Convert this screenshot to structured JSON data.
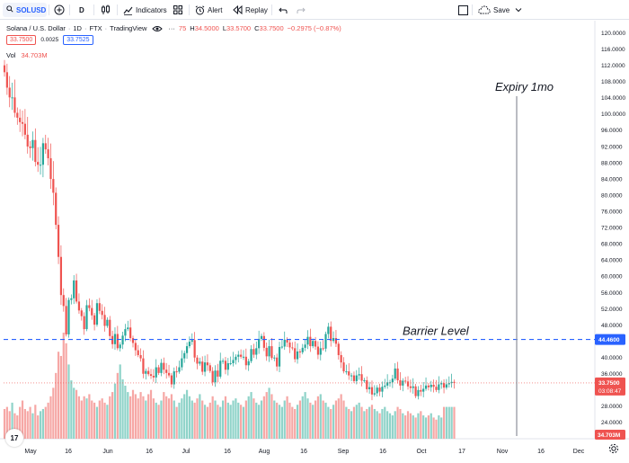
{
  "toolbar": {
    "symbol": "SOLUSD",
    "add_symbol": "+",
    "interval": "D",
    "indicators": "Indicators",
    "alert": "Alert",
    "replay": "Replay",
    "save": "Save"
  },
  "legend": {
    "title": "Solana / U.S. Dollar",
    "interval": "1D",
    "exchange": "FTX",
    "source": "TradingView",
    "o_partial": "75",
    "h_label": "H",
    "h_value": "34.5000",
    "l_label": "L",
    "l_value": "33.5700",
    "c_label": "C",
    "c_value": "33.7500",
    "change": "−0.2975 (−0.87%)",
    "bid": "33.7500",
    "spread": "0.0025",
    "ask": "33.7525",
    "vol_label": "Vol",
    "vol_value": "34.703M"
  },
  "annotations": {
    "expiry": "Expiry 1mo",
    "barrier": "Barrier Level"
  },
  "price_axis": {
    "ticks": [
      "120.0000",
      "116.0000",
      "112.0000",
      "108.0000",
      "104.0000",
      "100.0000",
      "96.0000",
      "92.0000",
      "88.0000",
      "84.0000",
      "80.0000",
      "76.0000",
      "72.0000",
      "68.0000",
      "64.0000",
      "60.0000",
      "56.0000",
      "52.0000",
      "48.0000",
      "40.0000",
      "36.0000",
      "28.0000",
      "24.0000"
    ],
    "barrier_badge": "44.4600",
    "last_price_badge": "33.7500",
    "countdown": "03:08:47",
    "volume_badge": "34.703M"
  },
  "time_axis": {
    "labels": [
      "May",
      "16",
      "Jun",
      "16",
      "Jul",
      "16",
      "Aug",
      "16",
      "Sep",
      "16",
      "Oct",
      "17",
      "Nov",
      "16",
      "Dec"
    ]
  },
  "colors": {
    "up": "#26a69a",
    "down": "#ef5350",
    "up_volume": "#8fd3c9",
    "down_volume": "#f6a7a5",
    "barrier": "#2962ff",
    "accent": "#2962ff"
  },
  "chart_data": {
    "type": "candlestick",
    "y_axis_range": [
      20,
      123
    ],
    "series": [
      {
        "name": "SOLUSD",
        "period": "May–Oct",
        "o": [
          112.0,
          110.3,
          106.5,
          104.1,
          104.1,
          100.3,
          99.1,
          98.0,
          97.6,
          94.9,
          92.0,
          91.6,
          93.6,
          88.2,
          87.5,
          87.5,
          92.8,
          91.3,
          89.1,
          84.0,
          80.6,
          72.7,
          64.8,
          55.4,
          52.7,
          45.7,
          54.2,
          54.6,
          59.0,
          53.8,
          51.6,
          50.2,
          47.0,
          52.9,
          52.2,
          50.4,
          48.1,
          53.4,
          51.5,
          50.5,
          47.8,
          49.3,
          45.3,
          43.3,
          45.8,
          42.3,
          43.2,
          45.4,
          47.0,
          47.4,
          44.8,
          43.6,
          41.8,
          40.6,
          39.8,
          36.0,
          36.7,
          35.9,
          35.5,
          35.1,
          37.6,
          36.2,
          38.7,
          37.0,
          36.2,
          35.6,
          33.4,
          36.6,
          36.5,
          37.6,
          39.8,
          41.1,
          42.8,
          43.9,
          44.3,
          40.0,
          38.5,
          39.0,
          36.5,
          38.8,
          38.1,
          36.7,
          33.9,
          36.8,
          35.3,
          39.2,
          39.2,
          37.0,
          38.6,
          38.6,
          39.4,
          40.2,
          40.7,
          40.2,
          40.2,
          38.1,
          39.1,
          42.1,
          40.7,
          42.3,
          44.6,
          45.3,
          42.4,
          40.3,
          42.8,
          39.9,
          40.0,
          37.8,
          42.6,
          42.7,
          44.4,
          43.7,
          42.5,
          42.3,
          39.6,
          41.5,
          41.3,
          42.4,
          43.2,
          45.1,
          42.8,
          44.1,
          42.7,
          40.7,
          42.3,
          42.2,
          45.8,
          47.6,
          44.1,
          44.8,
          43.4,
          40.6,
          38.8,
          36.6,
          36.6,
          35.6,
          35.6,
          34.2,
          35.6,
          35.9,
          34.3,
          34.4,
          32.2,
          32.7,
          30.9,
          31.2,
          32.6,
          31.6,
          32.8,
          33.1,
          33.9,
          33.9,
          34.8,
          37.3,
          34.4,
          33.1,
          34.3,
          34.1,
          32.9,
          32.5,
          32.9,
          30.5,
          32.0,
          31.6,
          32.3,
          33.1,
          32.7,
          33.3,
          32.8,
          32.0,
          33.4,
          33.7,
          32.6,
          33.4,
          33.7,
          34.0
        ],
        "c": [
          110.3,
          106.5,
          104.1,
          104.1,
          100.3,
          99.1,
          98.0,
          97.6,
          94.9,
          92.0,
          91.6,
          93.6,
          88.2,
          87.5,
          87.5,
          92.8,
          91.3,
          89.1,
          84.0,
          80.6,
          72.7,
          64.8,
          55.4,
          52.7,
          45.7,
          54.2,
          54.6,
          59.0,
          53.8,
          51.6,
          50.2,
          47.0,
          52.9,
          52.2,
          50.4,
          48.1,
          53.4,
          51.5,
          50.5,
          47.8,
          49.3,
          45.3,
          43.3,
          45.8,
          42.3,
          43.2,
          45.4,
          47.0,
          47.4,
          44.8,
          43.6,
          41.8,
          40.6,
          39.8,
          36.0,
          36.7,
          35.9,
          35.5,
          35.1,
          37.6,
          36.2,
          38.7,
          37.0,
          36.2,
          35.6,
          33.4,
          36.6,
          36.5,
          37.6,
          39.8,
          41.1,
          42.8,
          43.9,
          44.3,
          40.0,
          38.5,
          39.0,
          36.5,
          38.8,
          38.1,
          36.7,
          33.9,
          36.8,
          35.3,
          39.2,
          39.2,
          37.0,
          38.6,
          38.6,
          39.4,
          40.2,
          40.7,
          40.2,
          40.2,
          38.1,
          39.1,
          42.1,
          40.7,
          42.3,
          44.6,
          45.3,
          42.4,
          40.3,
          42.8,
          39.9,
          40.0,
          37.8,
          42.6,
          42.7,
          44.4,
          43.7,
          42.5,
          42.3,
          39.6,
          41.5,
          41.3,
          42.4,
          43.2,
          45.1,
          42.8,
          44.1,
          42.7,
          40.7,
          42.3,
          42.2,
          45.8,
          47.6,
          44.1,
          44.8,
          43.4,
          40.6,
          38.8,
          36.6,
          36.6,
          35.6,
          35.6,
          34.2,
          35.6,
          35.9,
          34.3,
          34.4,
          32.2,
          32.7,
          30.9,
          31.2,
          32.6,
          31.6,
          32.8,
          33.1,
          33.9,
          33.9,
          34.8,
          37.3,
          34.4,
          33.1,
          34.3,
          34.1,
          32.9,
          32.5,
          32.9,
          30.5,
          32.0,
          31.6,
          32.3,
          33.1,
          32.7,
          33.3,
          32.8,
          32.0,
          33.4,
          33.7,
          32.6,
          33.4,
          33.7,
          34.0,
          33.75
        ],
        "volume_scale": [
          0.28,
          0.3,
          0.26,
          0.34,
          0.24,
          0.22,
          0.3,
          0.36,
          0.28,
          0.26,
          0.3,
          0.24,
          0.32,
          0.22,
          0.26,
          0.28,
          0.3,
          0.34,
          0.4,
          0.48,
          0.62,
          0.82,
          0.78,
          1.0,
          0.9,
          0.7,
          0.55,
          0.48,
          0.46,
          0.4,
          0.36,
          0.4,
          0.38,
          0.42,
          0.36,
          0.34,
          0.3,
          0.36,
          0.38,
          0.34,
          0.32,
          0.4,
          0.44,
          0.52,
          0.62,
          0.7,
          0.56,
          0.5,
          0.44,
          0.4,
          0.46,
          0.42,
          0.38,
          0.44,
          0.4,
          0.36,
          0.42,
          0.46,
          0.38,
          0.34,
          0.32,
          0.36,
          0.44,
          0.4,
          0.38,
          0.42,
          0.36,
          0.3,
          0.34,
          0.38,
          0.42,
          0.46,
          0.4,
          0.36,
          0.34,
          0.38,
          0.42,
          0.36,
          0.32,
          0.3,
          0.34,
          0.4,
          0.36,
          0.32,
          0.3,
          0.36,
          0.4,
          0.34,
          0.32,
          0.36,
          0.38,
          0.34,
          0.32,
          0.3,
          0.36,
          0.4,
          0.44,
          0.38,
          0.34,
          0.32,
          0.36,
          0.4,
          0.44,
          0.48,
          0.42,
          0.36,
          0.34,
          0.32,
          0.3,
          0.36,
          0.4,
          0.34,
          0.3,
          0.28,
          0.32,
          0.36,
          0.4,
          0.44,
          0.38,
          0.34,
          0.32,
          0.36,
          0.4,
          0.42,
          0.36,
          0.34,
          0.3,
          0.28,
          0.32,
          0.36,
          0.38,
          0.42,
          0.36,
          0.3,
          0.28,
          0.26,
          0.3,
          0.32,
          0.34,
          0.3,
          0.26,
          0.28,
          0.3,
          0.32,
          0.28,
          0.26,
          0.24,
          0.28,
          0.3,
          0.26,
          0.24,
          0.22,
          0.26,
          0.3,
          0.28,
          0.24,
          0.22,
          0.26,
          0.24,
          0.22,
          0.2,
          0.24,
          0.26,
          0.22,
          0.2,
          0.22,
          0.24,
          0.2,
          0.18,
          0.22,
          0.2
        ]
      }
    ],
    "barrier_level": 44.46,
    "expiry": "Expiry 1mo"
  }
}
